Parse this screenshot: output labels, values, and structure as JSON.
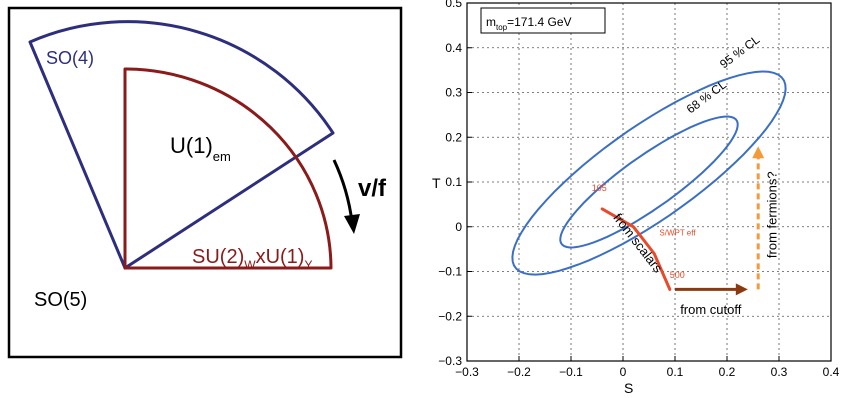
{
  "left_diagram": {
    "labels": {
      "so4": "SO(4)",
      "u1em_main": "U(1)",
      "u1em_sub": "em",
      "vf": "v/f",
      "su2_main": "SU(2)",
      "su2_sub_w": "W",
      "su2_x": "xU(1)",
      "su2_sub_y": "Y",
      "so5": "SO(5)"
    },
    "colors": {
      "so4": "#2d2f7e",
      "su2": "#8b1a1a",
      "frame": "#000000"
    }
  },
  "chart_data": {
    "type": "scatter",
    "xlabel": "S",
    "ylabel": "T",
    "xlim": [
      -0.3,
      0.4
    ],
    "ylim": [
      -0.3,
      0.5
    ],
    "xticks": [
      "−0.3",
      "−0.2",
      "−0.1",
      "0",
      "0.1",
      "0.2",
      "0.3",
      "0.4"
    ],
    "yticks": [
      "−0.3",
      "−0.2",
      "−0.1",
      "0",
      "0.1",
      "0.2",
      "0.3",
      "0.4",
      "0.5"
    ],
    "grid": true,
    "legend_box": "m_top=171.4 GeV",
    "legend_main": "m",
    "legend_sub": "top",
    "legend_rest": "=171.4 GeV",
    "contours": [
      {
        "name": "95 % CL",
        "center": [
          0.05,
          0.12
        ],
        "a": 0.333,
        "b": 0.098,
        "angle_deg": 40
      },
      {
        "name": "68 % CL",
        "center": [
          0.05,
          0.1
        ],
        "a": 0.218,
        "b": 0.055,
        "angle_deg": 40
      }
    ],
    "scalars_path": [
      [
        -0.04,
        0.04
      ],
      [
        0.02,
        0.0
      ],
      [
        0.06,
        -0.06
      ],
      [
        0.09,
        -0.14
      ]
    ],
    "scalar_labels": {
      "start": "105",
      "mid": "S/WPT eff",
      "end": "500"
    },
    "annotations": {
      "scalars": "from scalars",
      "cutoff": "from cutoff",
      "fermions": "from fermions?"
    },
    "cutoff_arrow": {
      "from": [
        0.1,
        -0.14
      ],
      "to": [
        0.24,
        -0.14
      ]
    },
    "fermions_arrow": {
      "from": [
        0.26,
        -0.14
      ],
      "to": [
        0.26,
        0.18
      ]
    },
    "colors": {
      "contour": "#3b6fc4",
      "scalars": "#e84a2a",
      "cutoff": "#8b3a10",
      "fermions": "#f59a3a"
    }
  }
}
